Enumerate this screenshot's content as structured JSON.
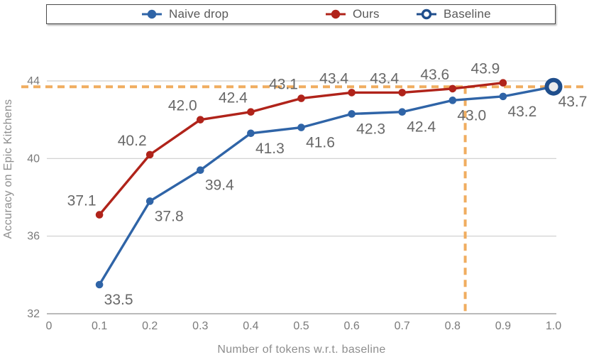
{
  "legend": {
    "items": [
      {
        "label": "Naive drop",
        "color": "#2F64A7",
        "marker": "filled-circle"
      },
      {
        "label": "Ours",
        "color": "#B0231A",
        "marker": "filled-circle"
      },
      {
        "label": "Baseline",
        "color": "#1F4E8C",
        "marker": "open-circle"
      }
    ]
  },
  "chart_data": {
    "type": "line",
    "title": "",
    "xlabel": "Number of tokens w.r.t. baseline",
    "ylabel": "Accuracy on Epic Kitchens",
    "xlim": [
      0,
      1.0
    ],
    "ylim": [
      32,
      44
    ],
    "x_ticks": [
      0,
      0.1,
      0.2,
      0.3,
      0.4,
      0.5,
      0.6,
      0.7,
      0.8,
      0.9,
      1.0
    ],
    "x_tick_labels": [
      "0",
      "0.1",
      "0.2",
      "0.3",
      "0.4",
      "0.5",
      "0.6",
      "0.7",
      "0.8",
      "0.9",
      "1.0"
    ],
    "y_ticks": [
      32,
      36,
      40,
      44
    ],
    "y_tick_labels": [
      "32",
      "36",
      "40",
      "44"
    ],
    "grid": "horizontal",
    "legend_position": "top",
    "series": [
      {
        "name": "Naive drop",
        "color": "#2F64A7",
        "marker": "filled-circle",
        "label_side": "below",
        "x": [
          0.1,
          0.2,
          0.3,
          0.4,
          0.5,
          0.6,
          0.7,
          0.8,
          0.9,
          1.0
        ],
        "values": [
          33.5,
          37.8,
          39.4,
          41.3,
          41.6,
          42.3,
          42.4,
          43.0,
          43.2,
          43.7
        ],
        "labels": [
          "33.5",
          "37.8",
          "39.4",
          "41.3",
          "41.6",
          "42.3",
          "42.4",
          "43.0",
          "43.2",
          "43.7"
        ]
      },
      {
        "name": "Ours",
        "color": "#B0231A",
        "marker": "filled-circle",
        "label_side": "above",
        "x": [
          0.1,
          0.2,
          0.3,
          0.4,
          0.5,
          0.6,
          0.7,
          0.8,
          0.9
        ],
        "values": [
          37.1,
          40.2,
          42.0,
          42.4,
          43.1,
          43.4,
          43.4,
          43.6,
          43.9
        ],
        "labels": [
          "37.1",
          "40.2",
          "42.0",
          "42.4",
          "43.1",
          "43.4",
          "43.4",
          "43.6",
          "43.9"
        ]
      },
      {
        "name": "Baseline",
        "color": "#1F4E8C",
        "marker": "open-circle",
        "show_labels": false,
        "x": [
          1.0
        ],
        "values": [
          43.7
        ],
        "labels": [
          "43.7"
        ]
      }
    ],
    "reference_lines": {
      "horizontal_y": 43.7,
      "vertical_x": 0.825,
      "color": "#F0AD60",
      "style": "dashed"
    }
  },
  "colors": {
    "grid": "#CDCDCD",
    "axis": "#A3A3A3",
    "tick_text": "#7A7A7A",
    "data_label_text": "#686868",
    "axis_title_text": "#8E8E8E",
    "accent_dashed": "#F0AD60",
    "open_marker_fill": "#ECECEC"
  }
}
